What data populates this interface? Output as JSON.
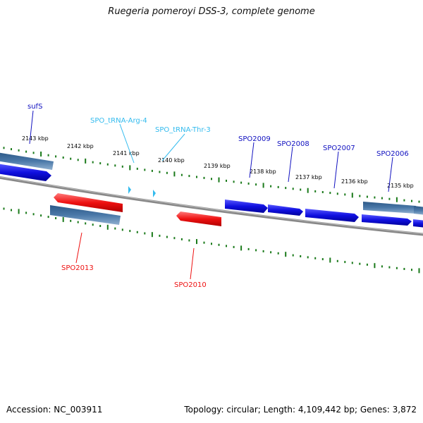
{
  "title": "Ruegeria pomeroyi DSS-3, complete genome",
  "footer": {
    "accession": "Accession: NC_003911",
    "summary": "Topology: circular; Length: 4,109,442 bp; Genes: 3,872"
  },
  "colors": {
    "forward_gene": "#1010e0",
    "reverse_gene": "#ee1111",
    "rna": "#33bbee",
    "pseudo": "#4a78a8",
    "ticks": "#1a7a1a",
    "backbone": "#777777"
  },
  "kbp_labels": [
    "2143 kbp",
    "2142 kbp",
    "2141 kbp",
    "2140 kbp",
    "2139 kbp",
    "2138 kbp",
    "2137 kbp",
    "2136 kbp",
    "2135 kbp"
  ],
  "gene_labels": {
    "sufS": "sufS",
    "arg": "SPO_tRNA-Arg-4",
    "thr": "SPO_tRNA-Thr-3",
    "spo2009": "SPO2009",
    "spo2008": "SPO2008",
    "spo2007": "SPO2007",
    "spo2006": "SPO2006",
    "spo2013": "SPO2013",
    "spo2010": "SPO2010"
  }
}
